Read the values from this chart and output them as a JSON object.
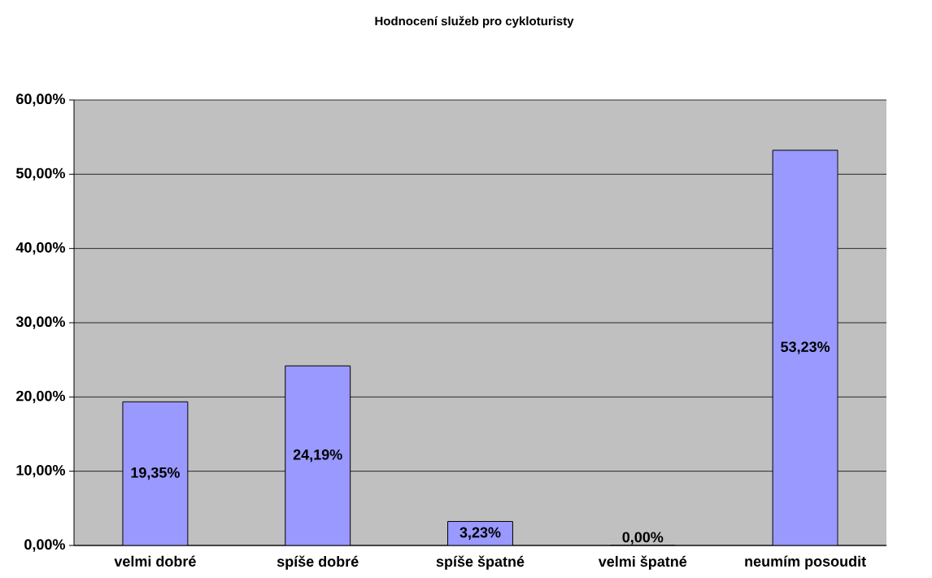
{
  "chart_data": {
    "type": "bar",
    "title": "Hodnocení služeb pro cykloturisty",
    "categories": [
      "velmi dobré",
      "spíše dobré",
      "spíše špatné",
      "velmi špatné",
      "neumím posoudit"
    ],
    "values": [
      19.35,
      24.19,
      3.23,
      0,
      53.23
    ],
    "value_labels": [
      "19,35%",
      "24,19%",
      "3,23%",
      "0,00%",
      "53,23%"
    ],
    "color": "#9999ff",
    "ylim": [
      0,
      60
    ],
    "yticks": [
      {
        "value": 0,
        "label": "0,00%"
      },
      {
        "value": 10,
        "label": "10,00%"
      },
      {
        "value": 20,
        "label": "20,00%"
      },
      {
        "value": 30,
        "label": "30,00%"
      },
      {
        "value": 40,
        "label": "40,00%"
      },
      {
        "value": 50,
        "label": "50,00%"
      },
      {
        "value": 60,
        "label": "60,00%"
      }
    ],
    "grid": "y"
  }
}
